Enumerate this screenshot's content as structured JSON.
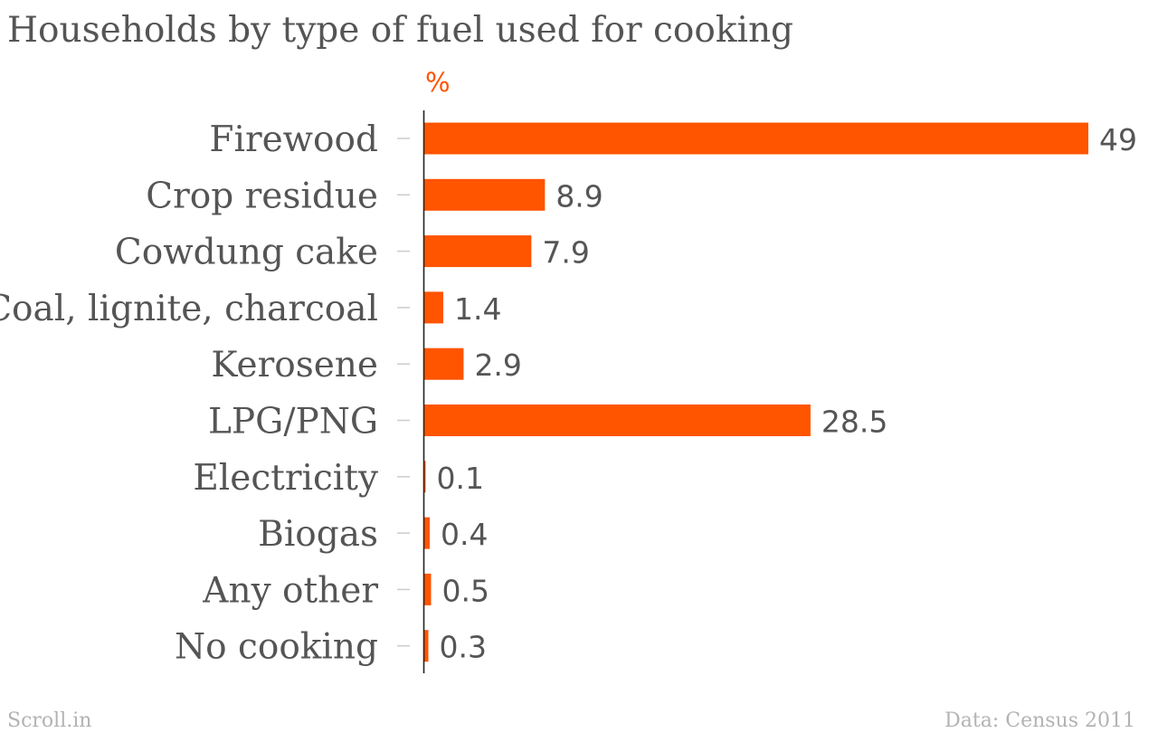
{
  "chart_data": {
    "type": "bar",
    "orientation": "horizontal",
    "title": "Households by type of fuel used for cooking",
    "unit_label": "%",
    "categories": [
      "Firewood",
      "Crop residue",
      "Cowdung cake",
      "Coal, lignite, charcoal",
      "Kerosene",
      "LPG/PNG",
      "Electricity",
      "Biogas",
      "Any other",
      "No cooking"
    ],
    "values": [
      49,
      8.9,
      7.9,
      1.4,
      2.9,
      28.5,
      0.1,
      0.4,
      0.5,
      0.3
    ],
    "value_labels": [
      "49",
      "8.9",
      "7.9",
      "1.4",
      "2.9",
      "28.5",
      "0.1",
      "0.4",
      "0.5",
      "0.3"
    ],
    "xlim": [
      0,
      49
    ],
    "grid": false,
    "bar_color": "#ff5400"
  },
  "footer": {
    "brand": "Scroll.in",
    "source": "Data: Census 2011"
  },
  "colors": {
    "bar": "#ff5400",
    "unit": "#ff5400",
    "title": "#555555",
    "category_label": "#555555",
    "value_label": "#555555",
    "footer": "#b3b3b3",
    "axis": "#222222",
    "tick": "#cccccc"
  }
}
